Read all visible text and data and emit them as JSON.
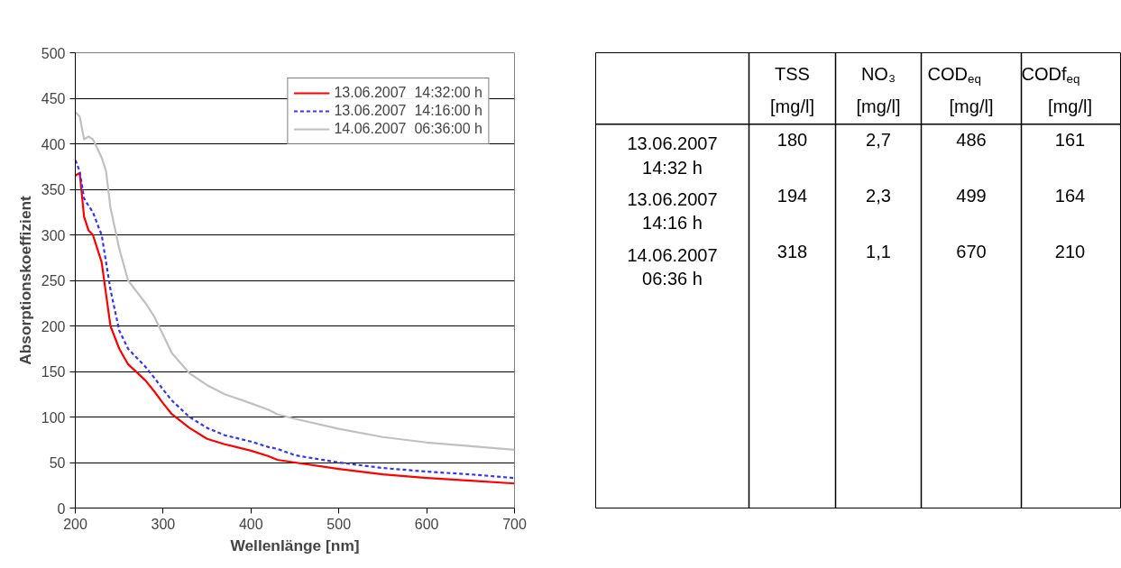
{
  "chart_data": [
    {
      "type": "line",
      "xlabel": "Wellenlänge [nm]",
      "ylabel": "Absorptionskoeffizient",
      "xlim": [
        200,
        700
      ],
      "xticks": [
        200,
        300,
        400,
        500,
        600,
        700
      ],
      "ylim": [
        0,
        500
      ],
      "yticks": [
        0,
        50,
        100,
        150,
        200,
        250,
        300,
        350,
        400,
        450,
        500
      ],
      "grid": "y",
      "legend": "top right",
      "x": [
        200,
        205,
        210,
        215,
        220,
        225,
        230,
        235,
        240,
        250,
        260,
        280,
        290,
        300,
        310,
        330,
        350,
        370,
        400,
        420,
        430,
        450,
        500,
        550,
        600,
        650,
        700
      ],
      "series": [
        {
          "name": "13.06.2007  14:32:00 h",
          "color": "#ff0000",
          "line_style": "solid",
          "values": [
            365,
            368,
            320,
            305,
            300,
            285,
            270,
            235,
            200,
            175,
            158,
            140,
            128,
            115,
            103,
            88,
            76,
            70,
            63,
            57,
            53,
            50,
            43,
            37,
            33,
            30,
            27
          ]
        },
        {
          "name": "13.06.2007  14:16:00 h",
          "color": "#3333ff",
          "line_style": "dashed",
          "values": [
            382,
            370,
            340,
            332,
            325,
            312,
            300,
            270,
            240,
            195,
            175,
            155,
            143,
            130,
            118,
            100,
            88,
            80,
            73,
            67,
            65,
            58,
            50,
            44,
            40,
            37,
            33
          ]
        },
        {
          "name": "14.06.2007  06:36:00 h",
          "color": "#c0c0c0",
          "line_style": "solid",
          "values": [
            435,
            430,
            405,
            408,
            405,
            395,
            385,
            370,
            330,
            285,
            250,
            225,
            210,
            190,
            170,
            148,
            135,
            125,
            115,
            108,
            103,
            98,
            87,
            78,
            72,
            68,
            64
          ]
        }
      ]
    },
    {
      "type": "other",
      "categories": [
        "TSS [mg/l]",
        "NO₃ [mg/l]",
        "COD$_{eq}$ [mg/l]",
        "CODf$_{eq}$ [mg/l]"
      ],
      "y_categories": [
        "13.06.2007\n14:32 h",
        "13.06.2007\n14:16 h",
        "14.06.2007\n06:36 h"
      ],
      "cell_labels": [
        [
          "180",
          "2,7",
          "486",
          "161"
        ],
        [
          "194",
          "2,3",
          "499",
          "164"
        ],
        [
          "318",
          "1,1",
          "670",
          "210"
        ]
      ]
    }
  ]
}
